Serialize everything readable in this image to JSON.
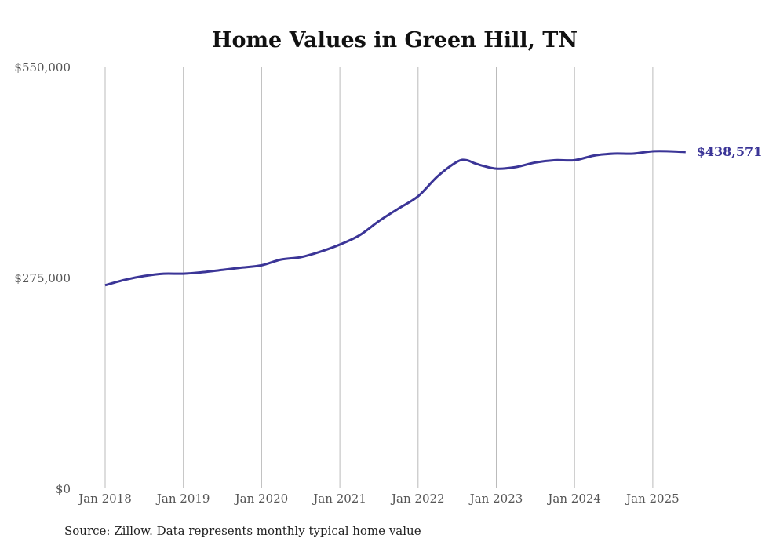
{
  "chart_data": {
    "type": "line",
    "title": "Home Values in Green Hill, TN",
    "xlabel": "",
    "ylabel": "",
    "ylim": [
      0,
      550000
    ],
    "xlim": [
      2018.0,
      2025.45
    ],
    "y_ticks": [
      0,
      275000,
      550000
    ],
    "y_tick_labels": [
      "$0",
      "$275,000",
      "$550,000"
    ],
    "x_ticks": [
      2018,
      2019,
      2020,
      2021,
      2022,
      2023,
      2024,
      2025
    ],
    "x_tick_labels": [
      "Jan 2018",
      "Jan 2019",
      "Jan 2020",
      "Jan 2021",
      "Jan 2022",
      "Jan 2023",
      "Jan 2024",
      "Jan 2025"
    ],
    "grid": "vertical",
    "series": [
      {
        "name": "Typical home value",
        "color": "#3b3597",
        "x": [
          2018.0,
          2018.25,
          2018.5,
          2018.75,
          2019.0,
          2019.25,
          2019.5,
          2019.75,
          2020.0,
          2020.25,
          2020.5,
          2020.75,
          2021.0,
          2021.25,
          2021.5,
          2021.75,
          2022.0,
          2022.25,
          2022.5,
          2022.62,
          2022.75,
          2023.0,
          2023.25,
          2023.5,
          2023.75,
          2024.0,
          2024.25,
          2024.5,
          2024.75,
          2025.0,
          2025.25,
          2025.42
        ],
        "values": [
          265000,
          272000,
          277000,
          280000,
          280000,
          282000,
          285000,
          288000,
          291000,
          298500,
          301600,
          308700,
          318000,
          330000,
          348600,
          365000,
          381000,
          407000,
          426000,
          428000,
          423000,
          417000,
          419000,
          425000,
          428000,
          428000,
          434000,
          436500,
          436500,
          439600,
          439500,
          438571
        ]
      }
    ],
    "end_label": "$438,571"
  },
  "source": "Source: Zillow. Data represents monthly typical home value"
}
